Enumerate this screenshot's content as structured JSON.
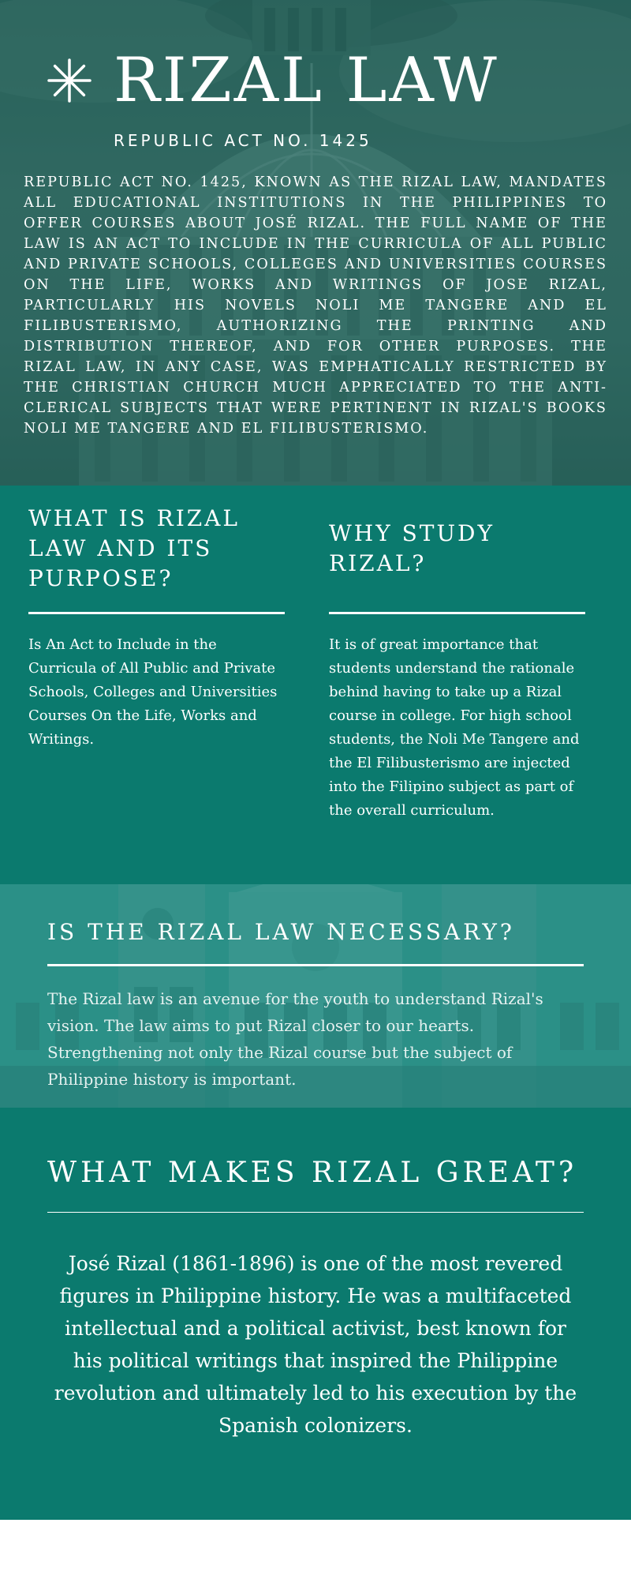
{
  "hero": {
    "title": "RIZAL LAW",
    "subtitle": "REPUBLIC ACT NO. 1425",
    "intro": "REPUBLIC ACT NO. 1425, KNOWN AS THE RIZAL LAW, MANDATES ALL EDUCATIONAL INSTITUTIONS IN THE PHILIPPINES TO OFFER COURSES ABOUT JOSÉ RIZAL. THE FULL NAME OF THE LAW IS AN ACT TO INCLUDE IN THE CURRICULA OF ALL PUBLIC AND PRIVATE SCHOOLS, COLLEGES AND UNIVERSITIES COURSES ON THE LIFE, WORKS AND WRITINGS OF JOSE RIZAL, PARTICULARLY HIS NOVELS NOLI ME TANGERE AND EL FILIBUSTERISMO, AUTHORIZING THE PRINTING AND DISTRIBUTION THEREOF, AND FOR OTHER PURPOSES. THE RIZAL LAW, IN ANY CASE, WAS EMPHATICALLY RESTRICTED BY THE CHRISTIAN CHURCH MUCH APPRECIATED TO THE ANTI-CLERICAL SUBJECTS THAT WERE PERTINENT IN RIZAL'S BOOKS NOLI ME TANGERE AND EL FILIBUSTERISMO."
  },
  "purpose": {
    "heading": "WHAT IS RIZAL LAW AND ITS PURPOSE?",
    "text": "Is An Act to Include in the Curricula of All Public and Private Schools, Colleges and Universities Courses On the Life, Works and Writings."
  },
  "why": {
    "heading": "WHY STUDY RIZAL?",
    "text": "It is of great importance that students understand the rationale behind having to take up a Rizal course in college. For high school students, the Noli Me Tangere and the El Filibusterismo are injected into the Filipino subject as part of the overall curriculum."
  },
  "necessary": {
    "heading": "IS THE RIZAL LAW NECESSARY?",
    "text": "The Rizal law is an avenue for the youth to understand Rizal's vision. The law aims to put Rizal closer to our hearts. Strengthening not only the Rizal course but the subject of Philippine history is important."
  },
  "great": {
    "heading": "WHAT MAKES RIZAL GREAT?",
    "text": "José Rizal (1861-1896) is one of the most revered figures in Philippine history. He was a multifaceted intellectual and a political activist, best known for his political writings that inspired the Philippine revolution and ultimately led to his execution by the Spanish colonizers."
  },
  "colors": {
    "teal": "#0b7a6e",
    "hero_tint": "#2f5f59",
    "light_teal": "#3b9a92"
  },
  "icons": {
    "title_icon": "asterisk-icon",
    "hero_background": "capitol-dome-photo",
    "necessary_background": "building-facade-photo"
  }
}
